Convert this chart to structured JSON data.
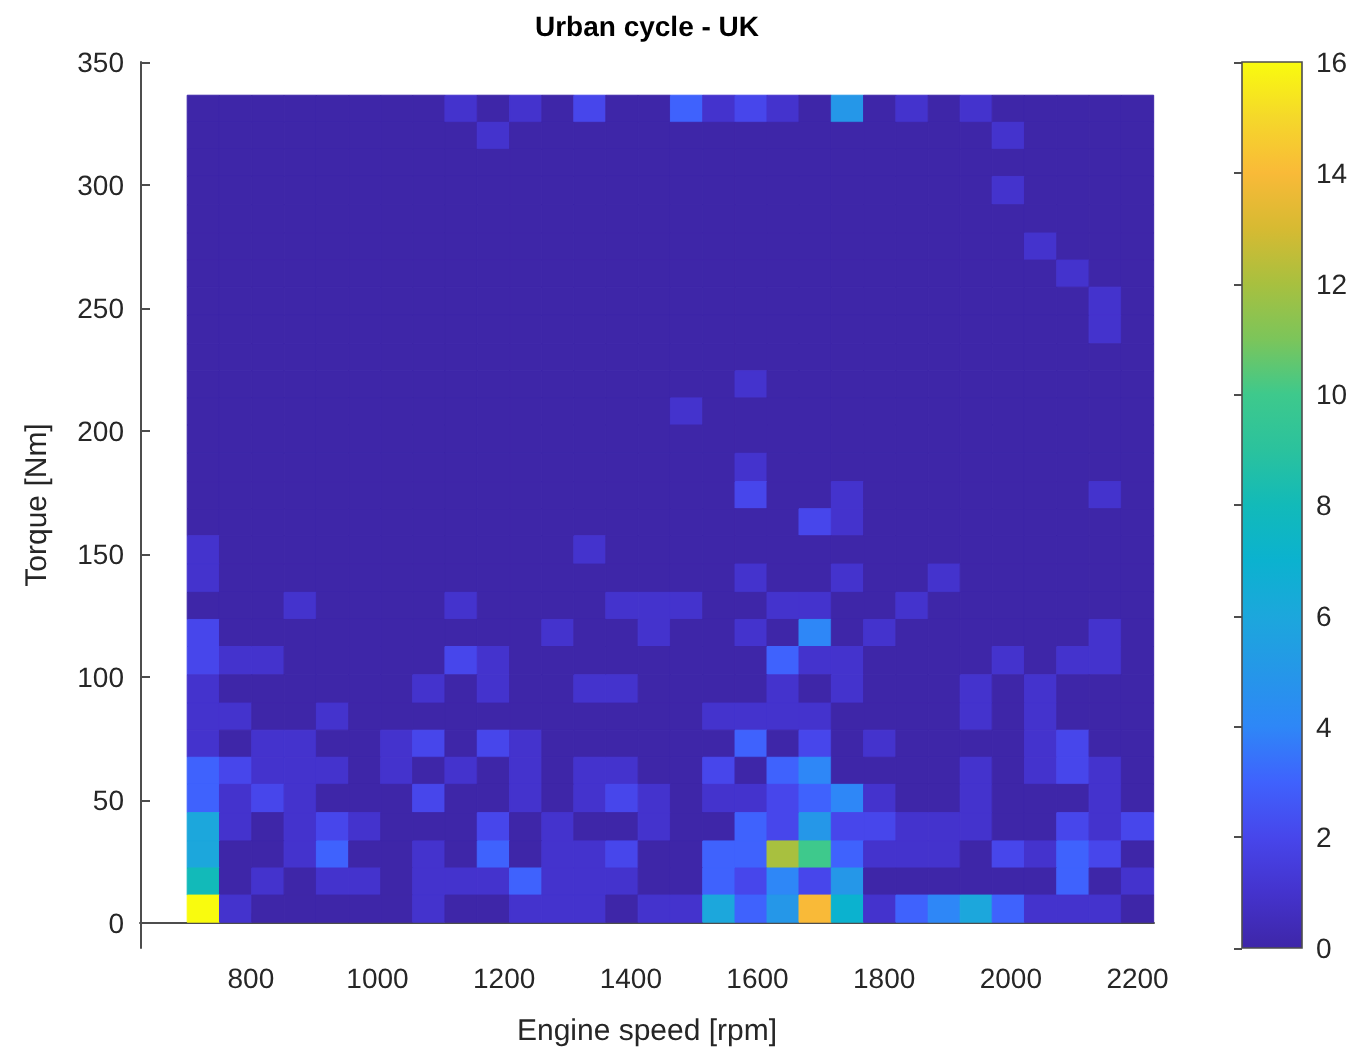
{
  "chart_data": {
    "type": "heatmap",
    "title": "Urban cycle - UK",
    "xlabel": "Engine speed [rpm]",
    "ylabel": "Torque [Nm]",
    "x": [
      725,
      776,
      827,
      878,
      929,
      980,
      1030,
      1081,
      1132,
      1183,
      1234,
      1285,
      1335,
      1386,
      1437,
      1488,
      1539,
      1590,
      1640,
      1691,
      1742,
      1793,
      1844,
      1895,
      1945,
      1996,
      2047,
      2098,
      2149,
      2200
    ],
    "y": [
      331,
      320,
      309,
      298,
      286,
      275,
      264,
      253,
      241,
      230,
      219,
      208,
      197,
      185,
      174,
      163,
      152,
      140,
      129,
      118,
      107,
      95,
      84,
      73,
      62,
      51,
      39,
      28,
      17,
      6
    ],
    "cells": [
      [
        0,
        0,
        0,
        0,
        0,
        0,
        0,
        0,
        1,
        0,
        1,
        0,
        2,
        0,
        0,
        3,
        1,
        2,
        1,
        0,
        5,
        0,
        1,
        0,
        1,
        0,
        0,
        0,
        0,
        0
      ],
      [
        0,
        0,
        0,
        0,
        0,
        0,
        0,
        0,
        0,
        1,
        0,
        0,
        0,
        0,
        0,
        0,
        0,
        0,
        0,
        0,
        0,
        0,
        0,
        0,
        0,
        1,
        0,
        0,
        0,
        0
      ],
      [
        0,
        0,
        0,
        0,
        0,
        0,
        0,
        0,
        0,
        0,
        0,
        0,
        0,
        0,
        0,
        0,
        0,
        0,
        0,
        0,
        0,
        0,
        0,
        0,
        0,
        0,
        0,
        0,
        0,
        0
      ],
      [
        0,
        0,
        0,
        0,
        0,
        0,
        0,
        0,
        0,
        0,
        0,
        0,
        0,
        0,
        0,
        0,
        0,
        0,
        0,
        0,
        0,
        0,
        0,
        0,
        0,
        1,
        0,
        0,
        0,
        0
      ],
      [
        0,
        0,
        0,
        0,
        0,
        0,
        0,
        0,
        0,
        0,
        0,
        0,
        0,
        0,
        0,
        0,
        0,
        0,
        0,
        0,
        0,
        0,
        0,
        0,
        0,
        0,
        0,
        0,
        0,
        0
      ],
      [
        0,
        0,
        0,
        0,
        0,
        0,
        0,
        0,
        0,
        0,
        0,
        0,
        0,
        0,
        0,
        0,
        0,
        0,
        0,
        0,
        0,
        0,
        0,
        0,
        0,
        0,
        1,
        0,
        0,
        0
      ],
      [
        0,
        0,
        0,
        0,
        0,
        0,
        0,
        0,
        0,
        0,
        0,
        0,
        0,
        0,
        0,
        0,
        0,
        0,
        0,
        0,
        0,
        0,
        0,
        0,
        0,
        0,
        0,
        1,
        0,
        0
      ],
      [
        0,
        0,
        0,
        0,
        0,
        0,
        0,
        0,
        0,
        0,
        0,
        0,
        0,
        0,
        0,
        0,
        0,
        0,
        0,
        0,
        0,
        0,
        0,
        0,
        0,
        0,
        0,
        0,
        1,
        0
      ],
      [
        0,
        0,
        0,
        0,
        0,
        0,
        0,
        0,
        0,
        0,
        0,
        0,
        0,
        0,
        0,
        0,
        0,
        0,
        0,
        0,
        0,
        0,
        0,
        0,
        0,
        0,
        0,
        0,
        1,
        0
      ],
      [
        0,
        0,
        0,
        0,
        0,
        0,
        0,
        0,
        0,
        0,
        0,
        0,
        0,
        0,
        0,
        0,
        0,
        0,
        0,
        0,
        0,
        0,
        0,
        0,
        0,
        0,
        0,
        0,
        0,
        0
      ],
      [
        0,
        0,
        0,
        0,
        0,
        0,
        0,
        0,
        0,
        0,
        0,
        0,
        0,
        0,
        0,
        0,
        0,
        1,
        0,
        0,
        0,
        0,
        0,
        0,
        0,
        0,
        0,
        0,
        0,
        0
      ],
      [
        0,
        0,
        0,
        0,
        0,
        0,
        0,
        0,
        0,
        0,
        0,
        0,
        0,
        0,
        0,
        1,
        0,
        0,
        0,
        0,
        0,
        0,
        0,
        0,
        0,
        0,
        0,
        0,
        0,
        0
      ],
      [
        0,
        0,
        0,
        0,
        0,
        0,
        0,
        0,
        0,
        0,
        0,
        0,
        0,
        0,
        0,
        0,
        0,
        0,
        0,
        0,
        0,
        0,
        0,
        0,
        0,
        0,
        0,
        0,
        0,
        0
      ],
      [
        0,
        0,
        0,
        0,
        0,
        0,
        0,
        0,
        0,
        0,
        0,
        0,
        0,
        0,
        0,
        0,
        0,
        1,
        0,
        0,
        0,
        0,
        0,
        0,
        0,
        0,
        0,
        0,
        0,
        0
      ],
      [
        0,
        0,
        0,
        0,
        0,
        0,
        0,
        0,
        0,
        0,
        0,
        0,
        0,
        0,
        0,
        0,
        0,
        2,
        0,
        0,
        1,
        0,
        0,
        0,
        0,
        0,
        0,
        0,
        1,
        0
      ],
      [
        0,
        0,
        0,
        0,
        0,
        0,
        0,
        0,
        0,
        0,
        0,
        0,
        0,
        0,
        0,
        0,
        0,
        0,
        0,
        2,
        1,
        0,
        0,
        0,
        0,
        0,
        0,
        0,
        0,
        0
      ],
      [
        1,
        0,
        0,
        0,
        0,
        0,
        0,
        0,
        0,
        0,
        0,
        0,
        1,
        0,
        0,
        0,
        0,
        0,
        0,
        0,
        0,
        0,
        0,
        0,
        0,
        0,
        0,
        0,
        0,
        0
      ],
      [
        1,
        0,
        0,
        0,
        0,
        0,
        0,
        0,
        0,
        0,
        0,
        0,
        0,
        0,
        0,
        0,
        0,
        1,
        0,
        0,
        1,
        0,
        0,
        1,
        0,
        0,
        0,
        0,
        0,
        0
      ],
      [
        0,
        0,
        0,
        1,
        0,
        0,
        0,
        0,
        1,
        0,
        0,
        0,
        0,
        1,
        1,
        1,
        0,
        0,
        1,
        1,
        0,
        0,
        1,
        0,
        0,
        0,
        0,
        0,
        0,
        0
      ],
      [
        2,
        0,
        0,
        0,
        0,
        0,
        0,
        0,
        0,
        0,
        0,
        1,
        0,
        0,
        1,
        0,
        0,
        1,
        0,
        4,
        0,
        1,
        0,
        0,
        0,
        0,
        0,
        0,
        1,
        0
      ],
      [
        2,
        1,
        1,
        0,
        0,
        0,
        0,
        0,
        2,
        1,
        0,
        0,
        0,
        0,
        0,
        0,
        0,
        0,
        3,
        1,
        1,
        0,
        0,
        0,
        0,
        1,
        0,
        1,
        1,
        0
      ],
      [
        1,
        0,
        0,
        0,
        0,
        0,
        0,
        1,
        0,
        1,
        0,
        0,
        1,
        1,
        0,
        0,
        0,
        0,
        1,
        0,
        1,
        0,
        0,
        0,
        1,
        0,
        1,
        0,
        0,
        0
      ],
      [
        1,
        1,
        0,
        0,
        1,
        0,
        0,
        0,
        0,
        0,
        0,
        0,
        0,
        0,
        0,
        0,
        1,
        1,
        1,
        1,
        0,
        0,
        0,
        0,
        1,
        0,
        1,
        0,
        0,
        0
      ],
      [
        1,
        0,
        1,
        1,
        0,
        0,
        1,
        2,
        0,
        2,
        1,
        0,
        0,
        0,
        0,
        0,
        0,
        3,
        0,
        2,
        0,
        1,
        0,
        0,
        0,
        0,
        1,
        2,
        0,
        0
      ],
      [
        3,
        2,
        1,
        1,
        1,
        0,
        1,
        0,
        1,
        0,
        1,
        0,
        1,
        1,
        0,
        0,
        2,
        0,
        3,
        4,
        0,
        0,
        0,
        0,
        1,
        0,
        1,
        2,
        1,
        0
      ],
      [
        3,
        1,
        2,
        1,
        0,
        0,
        0,
        2,
        0,
        0,
        1,
        0,
        1,
        2,
        1,
        0,
        1,
        1,
        2,
        3,
        4,
        1,
        0,
        0,
        1,
        0,
        0,
        0,
        1,
        0
      ],
      [
        6,
        1,
        0,
        1,
        2,
        1,
        0,
        0,
        0,
        2,
        0,
        1,
        0,
        0,
        1,
        0,
        0,
        3,
        2,
        5,
        2,
        2,
        1,
        1,
        1,
        0,
        0,
        2,
        1,
        2
      ],
      [
        6,
        0,
        0,
        1,
        3,
        0,
        0,
        1,
        0,
        3,
        0,
        1,
        1,
        2,
        0,
        0,
        3,
        3,
        12,
        10,
        3,
        1,
        1,
        1,
        0,
        2,
        1,
        3,
        2,
        0
      ],
      [
        8,
        0,
        1,
        0,
        1,
        1,
        0,
        1,
        1,
        1,
        3,
        1,
        1,
        1,
        0,
        0,
        3,
        2,
        4,
        2,
        5,
        0,
        0,
        0,
        0,
        0,
        0,
        3,
        0,
        1
      ],
      [
        16,
        1,
        0,
        0,
        0,
        0,
        0,
        1,
        0,
        0,
        1,
        1,
        1,
        0,
        1,
        1,
        6,
        3,
        5,
        14,
        7,
        1,
        3,
        4,
        6,
        3,
        1,
        1,
        1,
        0
      ]
    ],
    "xlim": [
      625,
      2226
    ],
    "xticks": [
      800,
      1000,
      1200,
      1400,
      1600,
      1800,
      2000,
      2200
    ],
    "ylim": [
      -10,
      350
    ],
    "yticks": [
      0,
      50,
      100,
      150,
      200,
      250,
      300,
      350
    ],
    "clim": [
      0,
      16
    ],
    "cticks": [
      0,
      2,
      4,
      6,
      8,
      10,
      12,
      14,
      16
    ]
  }
}
